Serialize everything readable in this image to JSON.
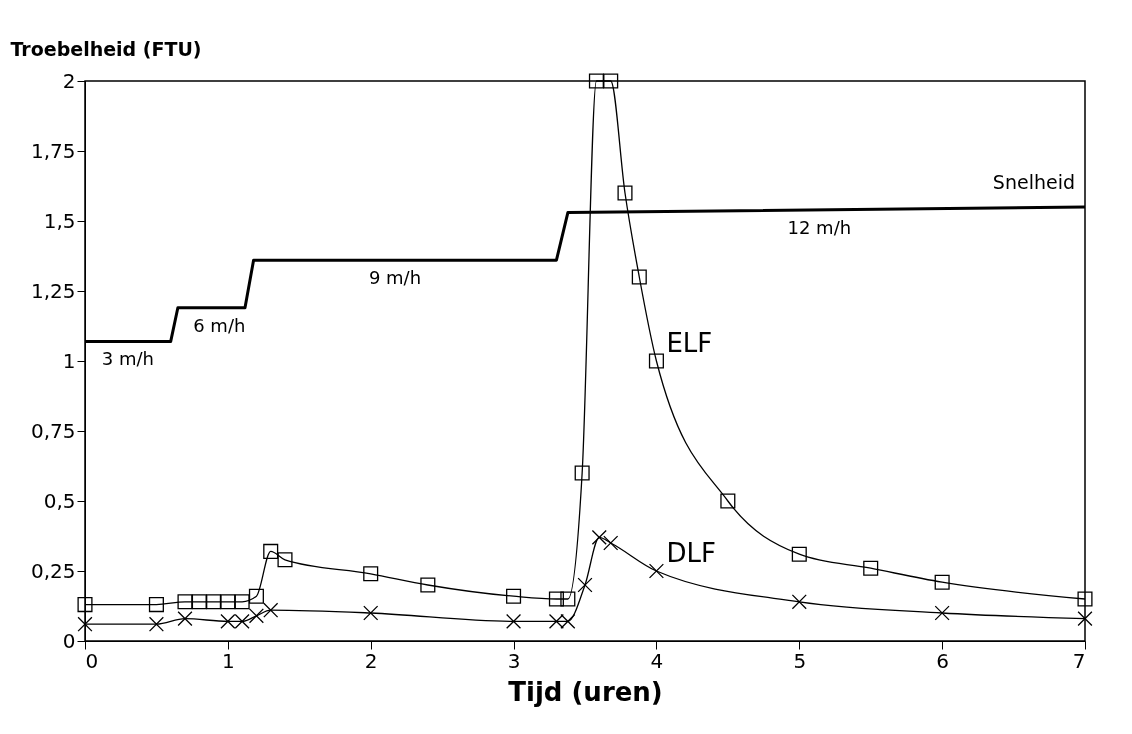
{
  "chart_data": {
    "type": "line",
    "xlabel": "Tijd (uren)",
    "ylabel": "Troebelheid (FTU)",
    "xlim": [
      0,
      7
    ],
    "xticks": [
      0,
      1,
      2,
      3,
      4,
      5,
      6,
      7
    ],
    "ylim": [
      0,
      2
    ],
    "yticks": [
      0,
      {
        "value": 0.25,
        "label": "0,25"
      },
      {
        "value": 0.5,
        "label": "0,5"
      },
      {
        "value": 0.75,
        "label": "0,75"
      },
      1,
      {
        "value": 1.25,
        "label": "1,25"
      },
      {
        "value": 1.5,
        "label": "1,5"
      },
      {
        "value": 1.75,
        "label": "1,75"
      },
      2
    ],
    "grid": false,
    "series": [
      {
        "name": "ELF",
        "color": "#000000",
        "marker": "square",
        "x": [
          0,
          0.5,
          0.7,
          0.8,
          0.9,
          1.0,
          1.1,
          1.2,
          1.3,
          1.4,
          2.0,
          2.4,
          3.0,
          3.3,
          3.38,
          3.48,
          3.58,
          3.68,
          3.78,
          3.88,
          4.0,
          4.5,
          5.0,
          5.5,
          6.0,
          7.0
        ],
        "values": [
          0.13,
          0.13,
          0.14,
          0.14,
          0.14,
          0.14,
          0.14,
          0.16,
          0.32,
          0.29,
          0.24,
          0.2,
          0.16,
          0.15,
          0.15,
          0.6,
          2.0,
          2.0,
          1.6,
          1.3,
          1.0,
          0.5,
          0.31,
          0.26,
          0.21,
          0.15
        ]
      },
      {
        "name": "DLF",
        "color": "#000000",
        "marker": "cross",
        "x": [
          0,
          0.5,
          0.7,
          1.0,
          1.1,
          1.2,
          1.3,
          2.0,
          3.0,
          3.3,
          3.38,
          3.5,
          3.6,
          3.68,
          4.0,
          5.0,
          6.0,
          7.0
        ],
        "values": [
          0.06,
          0.06,
          0.08,
          0.07,
          0.07,
          0.09,
          0.11,
          0.1,
          0.07,
          0.07,
          0.07,
          0.2,
          0.37,
          0.35,
          0.25,
          0.14,
          0.1,
          0.08
        ]
      },
      {
        "name": "Snelheid",
        "color": "#000000",
        "marker": "none",
        "x": [
          0,
          0.6,
          0.65,
          1.12,
          1.18,
          3.3,
          3.38,
          7.0
        ],
        "values": [
          1.07,
          1.07,
          1.19,
          1.19,
          1.36,
          1.36,
          1.53,
          1.55
        ]
      }
    ],
    "annotations": [
      {
        "text": "3 m/h",
        "x": 0.3,
        "y": 1.07
      },
      {
        "text": "6 m/h",
        "x": 0.94,
        "y": 1.19
      },
      {
        "text": "9 m/h",
        "x": 2.17,
        "y": 1.36
      },
      {
        "text": "12 m/h",
        "x": 5.14,
        "y": 1.54
      }
    ]
  }
}
